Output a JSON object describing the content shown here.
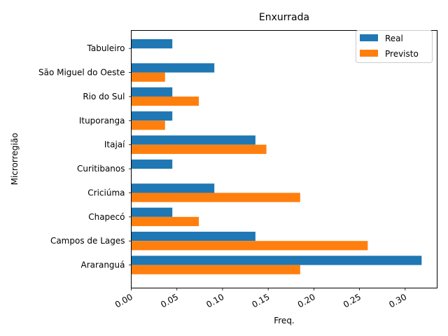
{
  "chart_data": {
    "type": "bar",
    "orientation": "horizontal",
    "title": "Enxurrada",
    "xlabel": "Freq.",
    "ylabel": "Microrregião",
    "xlim": [
      0,
      0.335
    ],
    "xticks": [
      "0.00",
      "0.05",
      "0.10",
      "0.15",
      "0.20",
      "0.25",
      "0.30"
    ],
    "xtick_values": [
      0,
      0.05,
      0.1,
      0.15,
      0.2,
      0.25,
      0.3
    ],
    "categories": [
      "Araranguá",
      "Campos de Lages",
      "Chapecó",
      "Criciúma",
      "Curitibanos",
      "Itajaí",
      "Ituporanga",
      "Rio do Sul",
      "São Miguel do Oeste",
      "Tabuleiro"
    ],
    "series": [
      {
        "name": "Real",
        "color": "#1f77b4",
        "values": [
          0.318,
          0.136,
          0.045,
          0.091,
          0.045,
          0.136,
          0.045,
          0.045,
          0.091,
          0.045
        ]
      },
      {
        "name": "Previsto",
        "color": "#ff7f0e",
        "values": [
          0.185,
          0.259,
          0.074,
          0.185,
          0.0,
          0.148,
          0.037,
          0.074,
          0.037,
          0.0
        ]
      }
    ],
    "legend_position": "top-right",
    "grid": false
  }
}
